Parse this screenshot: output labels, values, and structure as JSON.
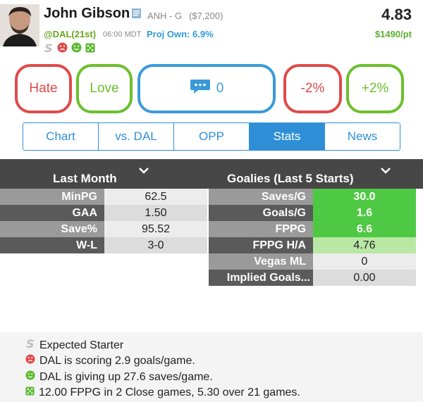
{
  "player": {
    "name": "John Gibson",
    "team_pos": "ANH - G",
    "salary": "($7,200)",
    "score": "4.83",
    "opponent": "@DAL(21st)",
    "time": "06:00 MDT",
    "proj_own": "Proj Own: 6.9%",
    "price_per_pt": "$1490/pt"
  },
  "actions": {
    "hate": "Hate",
    "love": "Love",
    "comments": "0",
    "minus": "-2%",
    "plus": "+2%"
  },
  "tabs": [
    {
      "label": "Chart",
      "active": false
    },
    {
      "label": "vs. DAL",
      "active": false
    },
    {
      "label": "OPP",
      "active": false
    },
    {
      "label": "Stats",
      "active": true
    },
    {
      "label": "News",
      "active": false
    }
  ],
  "last_month": {
    "title": "Last Month",
    "rows": [
      {
        "label": "MinPG",
        "value": "62.5"
      },
      {
        "label": "GAA",
        "value": "1.50"
      },
      {
        "label": "Save%",
        "value": "95.52"
      },
      {
        "label": "W-L",
        "value": "3-0"
      }
    ]
  },
  "goalies": {
    "title": "Goalies (Last 5 Starts)",
    "rows": [
      {
        "label": "Saves/G",
        "value": "30.0"
      },
      {
        "label": "Goals/G",
        "value": "1.6"
      },
      {
        "label": "FPPG",
        "value": "6.6"
      },
      {
        "label": "FPPG H/A",
        "value": "4.76"
      },
      {
        "label": "Vegas ML",
        "value": "0"
      },
      {
        "label": "Implied Goals...",
        "value": "0.00"
      }
    ]
  },
  "notes": [
    {
      "icon": "starter-s-icon",
      "text": "Expected Starter"
    },
    {
      "icon": "sad-face-icon",
      "text": "DAL is scoring 2.9 goals/game."
    },
    {
      "icon": "happy-face-icon",
      "text": "DAL is giving up 27.6 saves/game."
    },
    {
      "icon": "dice-icon",
      "text": "12.00 FPPG in 2 Close games, 5.30 over 21 games."
    }
  ],
  "colors": {
    "blue": "#2f8fd6",
    "red": "#e04a4a",
    "green": "#6cbf2c",
    "header_dark": "#474747"
  }
}
